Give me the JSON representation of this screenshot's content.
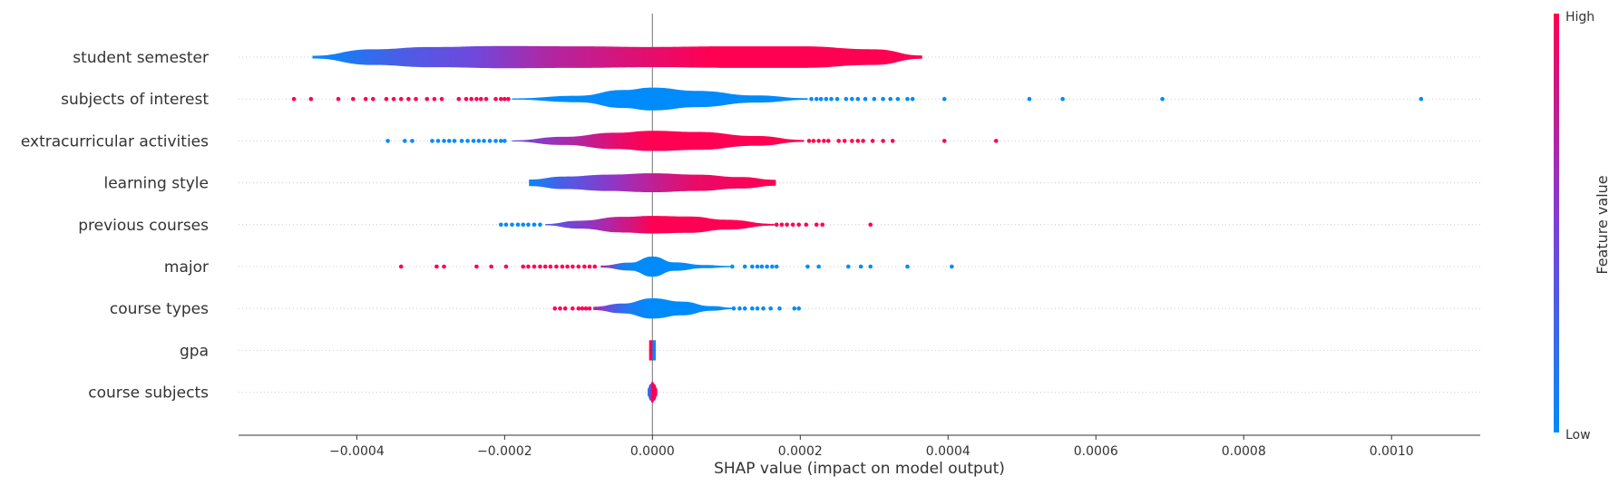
{
  "chart_data": {
    "type": "violin",
    "xlabel": "SHAP value (impact on model output)",
    "xlim": [
      -0.00056,
      0.00112
    ],
    "xticks": [
      -0.0004,
      -0.0002,
      0.0,
      0.0002,
      0.0004,
      0.0006,
      0.0008,
      0.001
    ],
    "xtick_labels": [
      "−0.0004",
      "−0.0002",
      "0.0000",
      "0.0002",
      "0.0004",
      "0.0006",
      "0.0008",
      "0.0010"
    ],
    "grid": "horizontal dotted row guides",
    "colorbar": {
      "label": "Feature value",
      "high_label": "High",
      "low_label": "Low",
      "high_color": "#ff0052",
      "low_color": "#008bfb"
    },
    "features": [
      {
        "name": "student semester",
        "profile": [
          [
            -0.00046,
            0.08
          ],
          [
            -0.00038,
            0.48
          ],
          [
            -0.0003,
            0.62
          ],
          [
            -0.0002,
            0.68
          ],
          [
            -0.0001,
            0.66
          ],
          [
            0.0,
            0.62
          ],
          [
            0.0001,
            0.66
          ],
          [
            0.0002,
            0.66
          ],
          [
            0.0003,
            0.48
          ],
          [
            0.000365,
            0.1
          ]
        ],
        "color_stops": [
          [
            -0.00046,
            0.0
          ],
          [
            -0.00034,
            0.3
          ],
          [
            -0.00024,
            0.45
          ],
          [
            -0.00014,
            0.7
          ],
          [
            -4e-05,
            0.85
          ],
          [
            8e-05,
            1.0
          ],
          [
            0.000365,
            1.0
          ]
        ],
        "outliers": []
      },
      {
        "name": "subjects of interest",
        "profile": [
          [
            -0.00019,
            0.04
          ],
          [
            -0.0001,
            0.2
          ],
          [
            -4e-05,
            0.55
          ],
          [
            0.0,
            0.7
          ],
          [
            6e-05,
            0.5
          ],
          [
            0.00014,
            0.22
          ],
          [
            0.00021,
            0.05
          ]
        ],
        "color_stops": [
          [
            -0.00019,
            0.0
          ],
          [
            0.00021,
            0.0
          ]
        ],
        "outliers": [
          [
            -0.000485,
            1
          ],
          [
            -0.000462,
            1
          ],
          [
            -0.000425,
            1
          ],
          [
            -0.000405,
            1
          ],
          [
            -0.000388,
            1
          ],
          [
            -0.000378,
            1
          ],
          [
            -0.00036,
            1
          ],
          [
            -0.00035,
            1
          ],
          [
            -0.00034,
            1
          ],
          [
            -0.00033,
            1
          ],
          [
            -0.00032,
            1
          ],
          [
            -0.000305,
            1
          ],
          [
            -0.000295,
            1
          ],
          [
            -0.000285,
            1
          ],
          [
            -0.000262,
            1
          ],
          [
            -0.000252,
            1
          ],
          [
            -0.000245,
            1
          ],
          [
            -0.000238,
            1
          ],
          [
            -0.000232,
            1
          ],
          [
            -0.000225,
            1
          ],
          [
            -0.000212,
            1
          ],
          [
            -0.000205,
            1
          ],
          [
            -0.0002,
            1
          ],
          [
            -0.000195,
            1
          ],
          [
            0.000215,
            0
          ],
          [
            0.000222,
            0
          ],
          [
            0.000228,
            0
          ],
          [
            0.000235,
            0
          ],
          [
            0.000242,
            0
          ],
          [
            0.00025,
            0
          ],
          [
            0.000262,
            0
          ],
          [
            0.00027,
            0
          ],
          [
            0.000278,
            0
          ],
          [
            0.000288,
            0
          ],
          [
            0.0003,
            0
          ],
          [
            0.000312,
            0
          ],
          [
            0.000322,
            0
          ],
          [
            0.000332,
            0
          ],
          [
            0.000345,
            0
          ],
          [
            0.000352,
            0
          ],
          [
            0.000395,
            0
          ],
          [
            0.00051,
            0
          ],
          [
            0.000555,
            0
          ],
          [
            0.00069,
            0
          ],
          [
            0.00104,
            0
          ]
        ]
      },
      {
        "name": "extracurricular activities",
        "profile": [
          [
            -0.00019,
            0.03
          ],
          [
            -0.00012,
            0.25
          ],
          [
            -5e-05,
            0.5
          ],
          [
            0.0,
            0.62
          ],
          [
            6e-05,
            0.55
          ],
          [
            0.00014,
            0.3
          ],
          [
            0.000205,
            0.06
          ]
        ],
        "color_stops": [
          [
            -0.00019,
            0.4
          ],
          [
            -0.00012,
            0.65
          ],
          [
            -4e-05,
            0.92
          ],
          [
            0.0,
            1.0
          ],
          [
            0.000205,
            1.0
          ]
        ],
        "outliers": [
          [
            -0.000358,
            0
          ],
          [
            -0.000335,
            0
          ],
          [
            -0.000325,
            0
          ],
          [
            -0.000298,
            0
          ],
          [
            -0.00029,
            0
          ],
          [
            -0.000282,
            0
          ],
          [
            -0.000275,
            0
          ],
          [
            -0.000268,
            0
          ],
          [
            -0.000258,
            0
          ],
          [
            -0.00025,
            0
          ],
          [
            -0.000242,
            0
          ],
          [
            -0.000235,
            0
          ],
          [
            -0.000228,
            0
          ],
          [
            -0.00022,
            0
          ],
          [
            -0.000212,
            0
          ],
          [
            -0.000205,
            0
          ],
          [
            -0.0002,
            0
          ],
          [
            0.000212,
            1
          ],
          [
            0.000218,
            1
          ],
          [
            0.000225,
            1
          ],
          [
            0.000232,
            1
          ],
          [
            0.000238,
            1
          ],
          [
            0.000252,
            1
          ],
          [
            0.00026,
            1
          ],
          [
            0.00027,
            1
          ],
          [
            0.000278,
            1
          ],
          [
            0.000285,
            1
          ],
          [
            0.000298,
            1
          ],
          [
            0.000312,
            1
          ],
          [
            0.000325,
            1
          ],
          [
            0.000395,
            1
          ],
          [
            0.000465,
            1
          ]
        ]
      },
      {
        "name": "learning style",
        "profile": [
          [
            -0.000167,
            0.2
          ],
          [
            -0.00012,
            0.38
          ],
          [
            -6e-05,
            0.5
          ],
          [
            0.0,
            0.58
          ],
          [
            6e-05,
            0.5
          ],
          [
            0.00012,
            0.35
          ],
          [
            0.000167,
            0.18
          ]
        ],
        "color_stops": [
          [
            -0.000167,
            0.05
          ],
          [
            -0.00012,
            0.3
          ],
          [
            -6e-05,
            0.55
          ],
          [
            0.0,
            0.75
          ],
          [
            6e-05,
            0.92
          ],
          [
            0.000167,
            1.0
          ]
        ],
        "outliers": []
      },
      {
        "name": "previous courses",
        "profile": [
          [
            -0.000145,
            0.04
          ],
          [
            -0.0001,
            0.24
          ],
          [
            -4e-05,
            0.48
          ],
          [
            0.0,
            0.54
          ],
          [
            5e-05,
            0.5
          ],
          [
            0.0001,
            0.3
          ],
          [
            0.000165,
            0.05
          ]
        ],
        "color_stops": [
          [
            -0.000145,
            0.3
          ],
          [
            -8e-05,
            0.6
          ],
          [
            -2e-05,
            0.88
          ],
          [
            0.0,
            1.0
          ],
          [
            0.000165,
            1.0
          ]
        ],
        "outliers": [
          [
            -0.000205,
            0
          ],
          [
            -0.000198,
            0
          ],
          [
            -0.00019,
            0
          ],
          [
            -0.000182,
            0
          ],
          [
            -0.000175,
            0
          ],
          [
            -0.000168,
            0
          ],
          [
            -0.00016,
            0
          ],
          [
            -0.000152,
            0
          ],
          [
            0.000168,
            1
          ],
          [
            0.000175,
            1
          ],
          [
            0.000182,
            1
          ],
          [
            0.00019,
            1
          ],
          [
            0.000198,
            1
          ],
          [
            0.000208,
            1
          ],
          [
            0.000222,
            1
          ],
          [
            0.00023,
            1
          ],
          [
            0.000295,
            1
          ]
        ]
      },
      {
        "name": "major",
        "profile": [
          [
            -7e-05,
            0.06
          ],
          [
            -3e-05,
            0.24
          ],
          [
            0.0,
            0.62
          ],
          [
            3e-05,
            0.26
          ],
          [
            7e-05,
            0.1
          ],
          [
            0.000105,
            0.04
          ]
        ],
        "color_stops": [
          [
            -7e-05,
            0.7
          ],
          [
            -4e-05,
            0.1
          ],
          [
            -2e-05,
            0.0
          ],
          [
            0.000105,
            0.0
          ]
        ],
        "outliers": [
          [
            -0.00034,
            1
          ],
          [
            -0.000292,
            1
          ],
          [
            -0.000282,
            1
          ],
          [
            -0.000238,
            1
          ],
          [
            -0.000218,
            1
          ],
          [
            -0.000198,
            1
          ],
          [
            -0.000175,
            1
          ],
          [
            -0.000168,
            1
          ],
          [
            -0.00016,
            1
          ],
          [
            -0.000152,
            1
          ],
          [
            -0.000145,
            1
          ],
          [
            -0.000138,
            1
          ],
          [
            -0.00013,
            1
          ],
          [
            -0.000122,
            1
          ],
          [
            -0.000115,
            1
          ],
          [
            -0.000108,
            1
          ],
          [
            -0.0001,
            1
          ],
          [
            -9.2e-05,
            1
          ],
          [
            -8.5e-05,
            1
          ],
          [
            -7.8e-05,
            1
          ],
          [
            0.000108,
            0
          ],
          [
            0.000125,
            0
          ],
          [
            0.000135,
            0
          ],
          [
            0.000142,
            0
          ],
          [
            0.000148,
            0
          ],
          [
            0.000155,
            0
          ],
          [
            0.000162,
            0
          ],
          [
            0.000168,
            0
          ],
          [
            0.00021,
            0
          ],
          [
            0.000225,
            0
          ],
          [
            0.000265,
            0
          ],
          [
            0.000282,
            0
          ],
          [
            0.000295,
            0
          ],
          [
            0.000345,
            0
          ],
          [
            0.000405,
            0
          ]
        ]
      },
      {
        "name": "course types",
        "profile": [
          [
            -8e-05,
            0.1
          ],
          [
            -4e-05,
            0.3
          ],
          [
            0.0,
            0.62
          ],
          [
            4e-05,
            0.42
          ],
          [
            8e-05,
            0.14
          ],
          [
            0.00011,
            0.04
          ]
        ],
        "color_stops": [
          [
            -8e-05,
            0.75
          ],
          [
            -6e-05,
            0.4
          ],
          [
            -3e-05,
            0.1
          ],
          [
            0.0,
            0.0
          ],
          [
            0.00011,
            0.0
          ]
        ],
        "outliers": [
          [
            -0.000132,
            1
          ],
          [
            -0.000125,
            1
          ],
          [
            -0.000118,
            1
          ],
          [
            -0.000108,
            1
          ],
          [
            -0.0001,
            1
          ],
          [
            -9.5e-05,
            1
          ],
          [
            -9e-05,
            1
          ],
          [
            -8.5e-05,
            1
          ],
          [
            0.00011,
            0
          ],
          [
            0.000118,
            0
          ],
          [
            0.000125,
            0
          ],
          [
            0.000135,
            0
          ],
          [
            0.000142,
            0
          ],
          [
            0.00015,
            0
          ],
          [
            0.00016,
            0
          ],
          [
            0.000172,
            0
          ],
          [
            0.000192,
            0
          ],
          [
            0.000198,
            0
          ]
        ]
      },
      {
        "name": "gpa",
        "profile": [
          [
            -4.5e-06,
            0.62
          ],
          [
            0.0,
            0.62
          ],
          [
            4.5e-06,
            0.62
          ]
        ],
        "color_stops": [
          [
            -4.5e-06,
            1.0
          ],
          [
            -1e-06,
            1.0
          ],
          [
            1e-06,
            0.0
          ],
          [
            4.5e-06,
            0.0
          ]
        ],
        "outliers": []
      },
      {
        "name": "course subjects",
        "profile": [
          [
            -6.5e-06,
            0.22
          ],
          [
            -3e-06,
            0.5
          ],
          [
            0.0,
            0.66
          ],
          [
            3e-06,
            0.5
          ],
          [
            6.5e-06,
            0.22
          ]
        ],
        "color_stops": [
          [
            -6.5e-06,
            0.0
          ],
          [
            -3e-06,
            0.4
          ],
          [
            0.0,
            1.0
          ],
          [
            6.5e-06,
            1.0
          ]
        ],
        "outliers": []
      }
    ]
  }
}
